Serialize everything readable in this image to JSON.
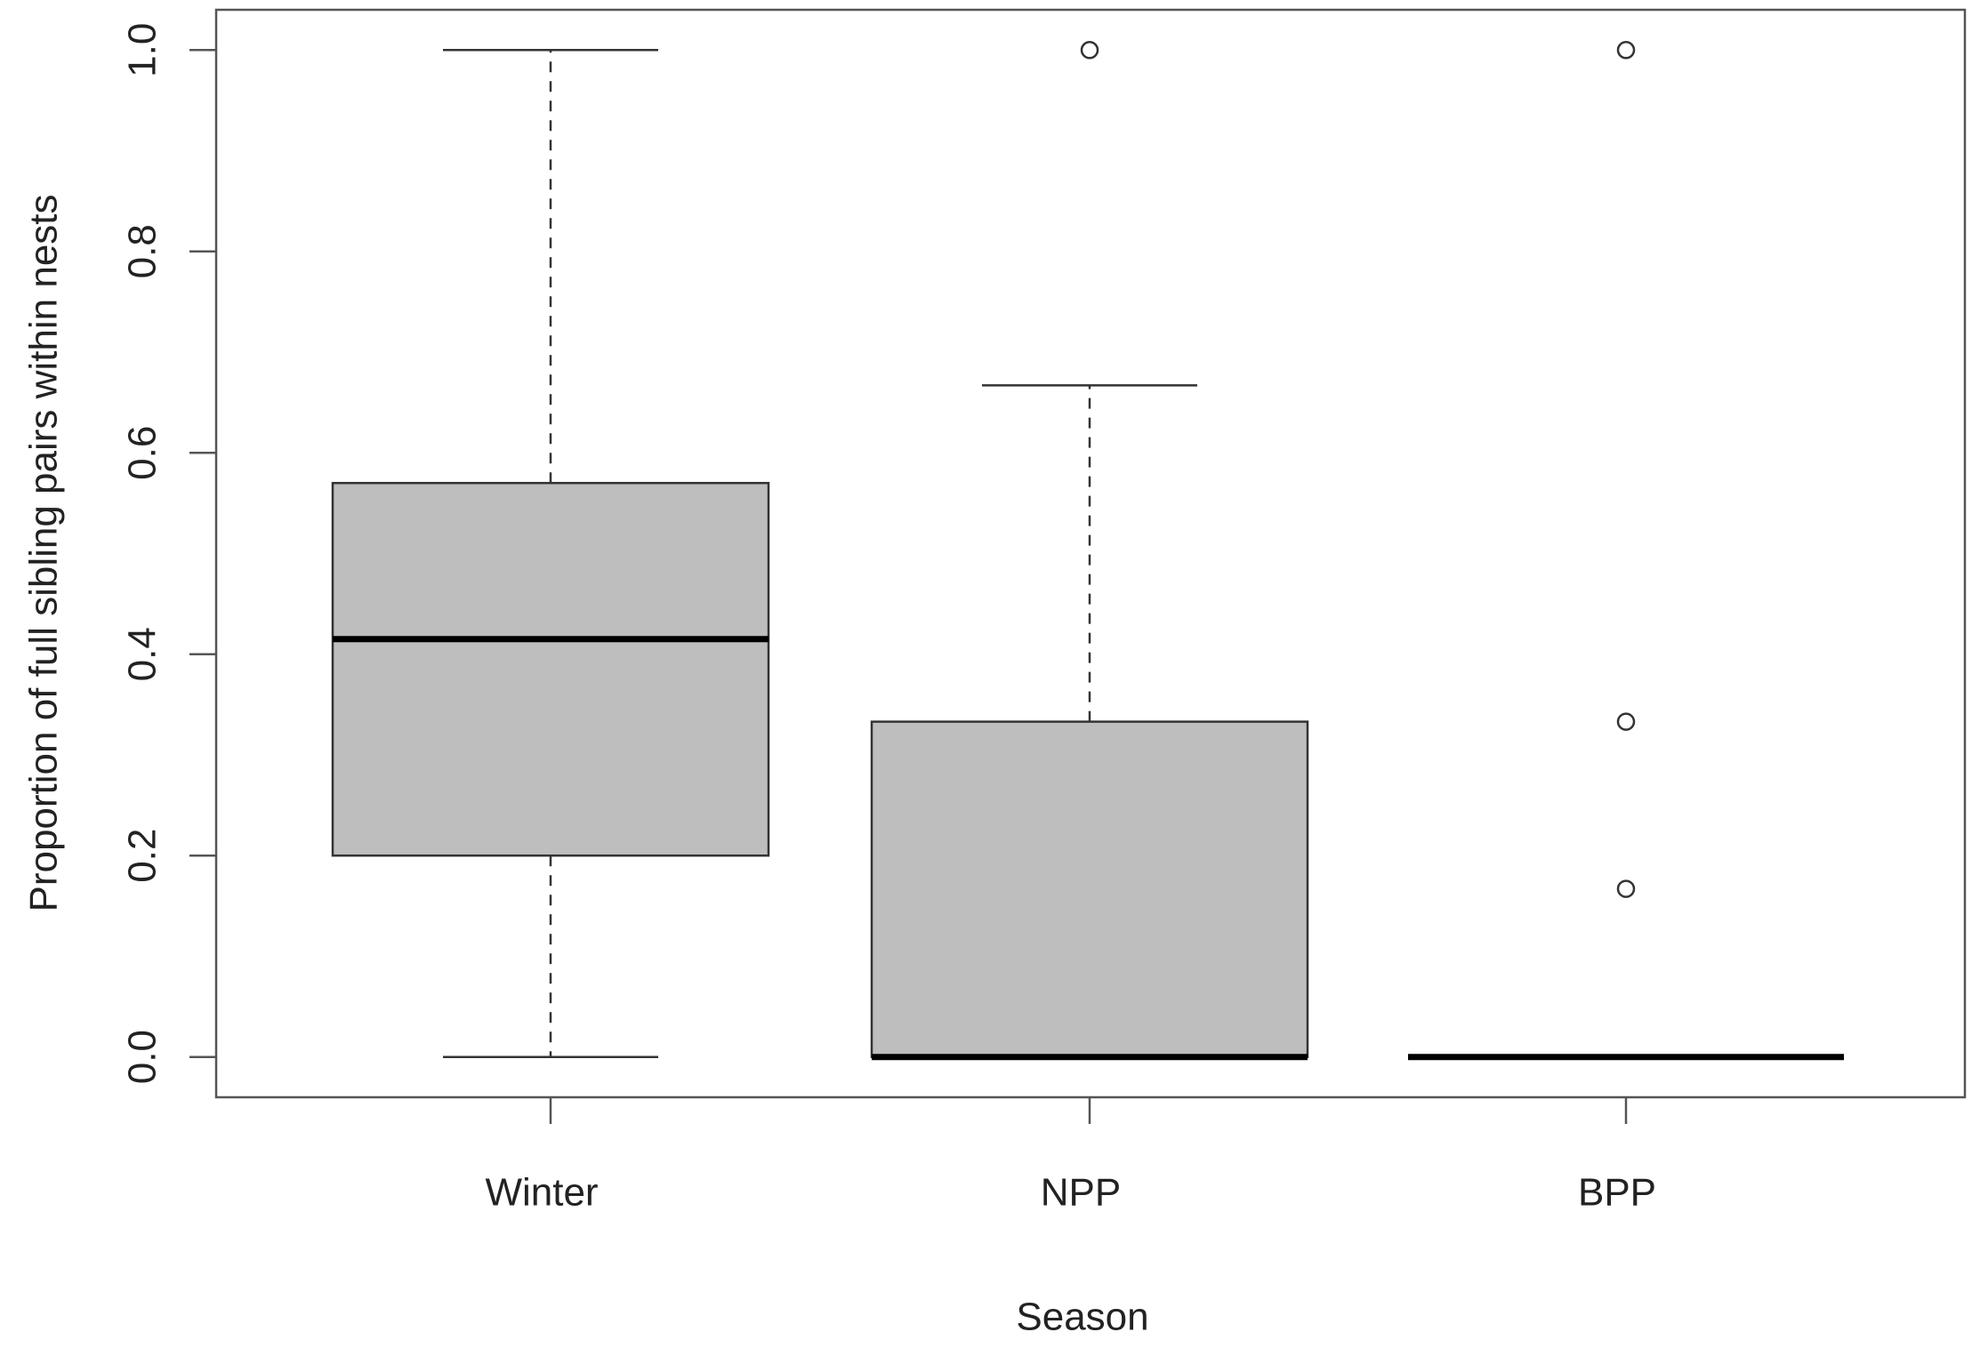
{
  "chart_data": {
    "type": "box",
    "x_label": "Season",
    "y_label": "Proportion of full sibling pairs within nests",
    "categories": [
      "Winter",
      "NPP",
      "BPP"
    ],
    "boxes": [
      {
        "min": 0,
        "q1": 0.2,
        "median": 0.415,
        "q3": 0.57,
        "max": 1.0,
        "outliers": []
      },
      {
        "min": 0,
        "q1": 0,
        "median": 0,
        "q3": 0.333,
        "max": 0.667,
        "outliers": [
          1.0
        ]
      },
      {
        "min": 0,
        "q1": 0,
        "median": 0,
        "q3": 0,
        "max": 0,
        "outliers": [
          1.0,
          0.333,
          0.167
        ]
      }
    ],
    "color": "#bebebe",
    "ylim": [
      -0.04,
      1.04
    ],
    "yticks": [
      {
        "value": 0,
        "label": "0.0"
      },
      {
        "value": 0.2,
        "label": "0.2"
      },
      {
        "value": 0.4,
        "label": "0.4"
      },
      {
        "value": 0.6,
        "label": "0.6"
      },
      {
        "value": 0.8,
        "label": "0.8"
      },
      {
        "value": 1.0,
        "label": "1.0"
      }
    ]
  }
}
